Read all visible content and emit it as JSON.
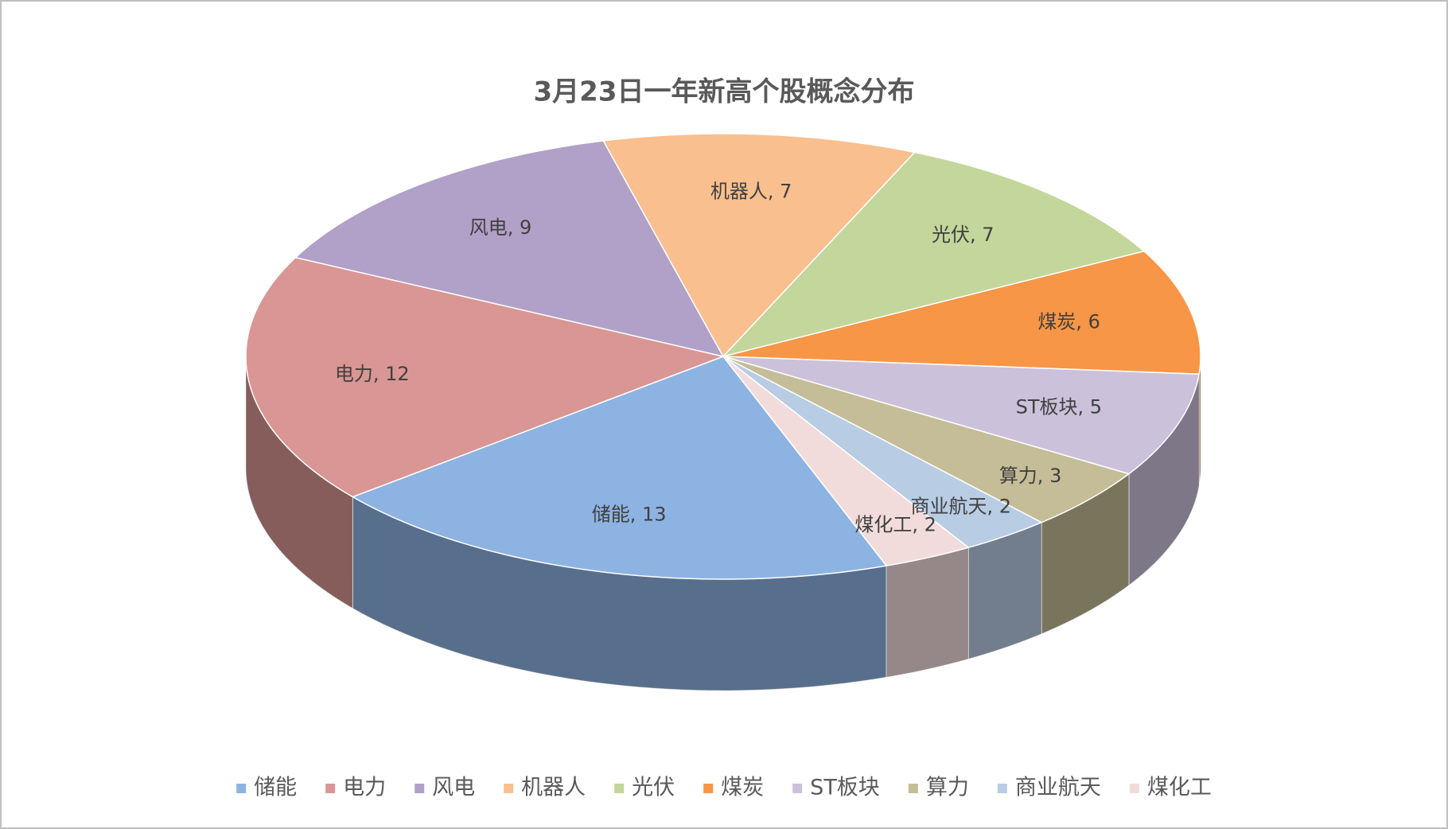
{
  "chart_data": {
    "type": "pie3d",
    "title": "3月23日一年新高个股概念分布",
    "categories": [
      "储能",
      "电力",
      "风电",
      "机器人",
      "光伏",
      "煤炭",
      "ST板块",
      "算力",
      "商业航天",
      "煤化工"
    ],
    "values": [
      13,
      12,
      9,
      7,
      7,
      6,
      5,
      3,
      2,
      2
    ],
    "value_labels": [
      "储能, 13",
      "电力, 12",
      "风电, 9",
      "机器人, 7",
      "光伏, 7",
      "煤炭, 6",
      "ST板块, 5",
      "算力, 3",
      "商业航天, 2",
      "煤化工, 2"
    ],
    "colors": [
      "#8db3e2",
      "#d99694",
      "#b1a0c7",
      "#f9bf8f",
      "#c3d69b",
      "#f79646",
      "#ccc1da",
      "#c4bd97",
      "#b8cce4",
      "#f2dcdb"
    ],
    "legend": "bottom"
  }
}
